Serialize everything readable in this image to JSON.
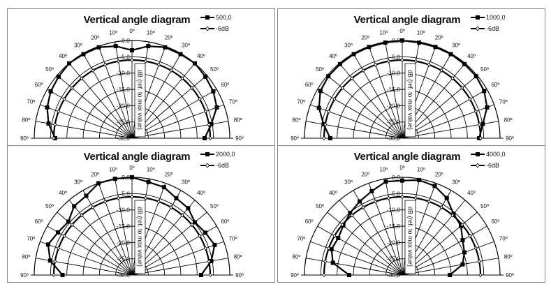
{
  "chart_data": [
    {
      "type": "polar-line",
      "title": "Vertical angle diagram",
      "axis_label": "dB (ref. to max value)",
      "radial_ticks": [
        "0,0",
        "-5,0",
        "-10,0",
        "-15,0",
        "-20,0",
        "-25,0",
        "-30,0"
      ],
      "rlim": [
        -30,
        0
      ],
      "angle_tick_labels": [
        "90º",
        "80º",
        "70º",
        "60º",
        "50º",
        "40º",
        "30º",
        "20º",
        "10º",
        "0º",
        "10º",
        "20º",
        "30º",
        "40º",
        "50º",
        "60º",
        "70º",
        "80º",
        "90º"
      ],
      "angles": [
        -90,
        -80,
        -70,
        -60,
        -50,
        -40,
        -30,
        -20,
        -10,
        0,
        10,
        20,
        30,
        40,
        50,
        60,
        70,
        80,
        90
      ],
      "legend_placement": "top-right",
      "series": [
        {
          "name": "500,0",
          "marker": "square",
          "values": [
            -6.4,
            -4,
            -2.3,
            -1.2,
            -0.6,
            0,
            -0.2,
            -0.3,
            -1.3,
            -3,
            -1.3,
            -0.3,
            -0.2,
            0,
            -0.6,
            -1.2,
            -2.3,
            -5.3,
            -7.7
          ]
        },
        {
          "name": "-6dB",
          "marker": "diamond",
          "values": [
            -6,
            -6,
            -6,
            -6,
            -6,
            -6,
            -6,
            -6,
            -6,
            -6,
            -6,
            -6,
            -6,
            -6,
            -6,
            -6,
            -6,
            -6,
            -6
          ]
        }
      ]
    },
    {
      "type": "polar-line",
      "title": "Vertical angle diagram",
      "axis_label": "dB (ref. to max value)",
      "radial_ticks": [
        "0,0",
        "-5,0",
        "-10,0",
        "-15,0",
        "-20,0",
        "-25,0",
        "-30,0"
      ],
      "rlim": [
        -30,
        0
      ],
      "angle_tick_labels": [
        "90º",
        "80º",
        "70º",
        "60º",
        "50º",
        "40º",
        "30º",
        "20º",
        "10º",
        "0º",
        "10º",
        "20º",
        "30º",
        "40º",
        "50º",
        "60º",
        "70º",
        "80º",
        "90º"
      ],
      "angles": [
        -90,
        -80,
        -70,
        -60,
        -50,
        -40,
        -30,
        -20,
        -10,
        0,
        10,
        20,
        30,
        40,
        50,
        60,
        70,
        80,
        90
      ],
      "legend_placement": "top-right",
      "series": [
        {
          "name": "1000,0",
          "marker": "square",
          "values": [
            -7.9,
            -5.5,
            -2.8,
            -1,
            -0.4,
            -0.3,
            -0.2,
            -0.2,
            -0.2,
            0,
            -0.2,
            -0.2,
            -0.2,
            -0.3,
            -0.4,
            -1,
            -2.3,
            -4.9,
            -6.4
          ]
        },
        {
          "name": "-6dB",
          "marker": "diamond",
          "values": [
            -6,
            -6,
            -6,
            -6,
            -6,
            -6,
            -6,
            -6,
            -6,
            -6,
            -6,
            -6,
            -6,
            -6,
            -6,
            -6,
            -6,
            -6,
            -6
          ]
        }
      ]
    },
    {
      "type": "polar-line",
      "title": "Vertical angle diagram",
      "axis_label": "dB (ref. to max value)",
      "radial_ticks": [
        "0,0",
        "-5,0",
        "-10,0",
        "-15,0",
        "-20,0",
        "-25,0",
        "-30,0"
      ],
      "rlim": [
        -30,
        0
      ],
      "angle_tick_labels": [
        "90º",
        "80º",
        "70º",
        "60º",
        "50º",
        "40º",
        "30º",
        "20º",
        "10º",
        "0º",
        "10º",
        "20º",
        "30º",
        "40º",
        "50º",
        "60º",
        "70º",
        "80º",
        "90º"
      ],
      "angles": [
        -90,
        -80,
        -70,
        -60,
        -50,
        -40,
        -30,
        -20,
        -10,
        0,
        10,
        20,
        30,
        40,
        50,
        60,
        70,
        80,
        90
      ],
      "legend_placement": "top-right",
      "series": [
        {
          "name": "2000,0",
          "marker": "square",
          "values": [
            -8.7,
            -4.5,
            -2.6,
            -3.8,
            -4.5,
            -2.4,
            -1.9,
            0,
            0,
            0,
            -1,
            -1.3,
            -2.8,
            -3.2,
            -4.8,
            -4,
            -3,
            -5.3,
            -8.8
          ]
        },
        {
          "name": "-6dB",
          "marker": "diamond",
          "values": [
            -6,
            -6,
            -6,
            -6,
            -6,
            -6,
            -6,
            -6,
            -6,
            -6,
            -6,
            -6,
            -6,
            -6,
            -6,
            -6,
            -6,
            -6,
            -6
          ]
        }
      ]
    },
    {
      "type": "polar-line",
      "title": "Vertical angle diagram",
      "axis_label": "dB (ref. to max value)",
      "radial_ticks": [
        "0,0",
        "-5,0",
        "-10,0",
        "-15,0",
        "-20,0",
        "-25,0",
        "-30,0"
      ],
      "rlim": [
        -30,
        0
      ],
      "angle_tick_labels": [
        "90º",
        "80º",
        "70º",
        "60º",
        "50º",
        "40º",
        "30º",
        "20º",
        "10º",
        "0º",
        "10º",
        "20º",
        "30º",
        "40º",
        "50º",
        "60º",
        "70º",
        "80º",
        "90º"
      ],
      "angles": [
        -90,
        -80,
        -70,
        -60,
        -50,
        -40,
        -30,
        -20,
        -10,
        0,
        10,
        20,
        30,
        40,
        50,
        60,
        70,
        80,
        90
      ],
      "legend_placement": "top-right",
      "series": [
        {
          "name": "4000,0",
          "marker": "square",
          "values": [
            -13.7,
            -8.4,
            -6.9,
            -7.3,
            -6.4,
            -5.1,
            -3.9,
            -2.6,
            -0.9,
            -1,
            -0.4,
            -0.9,
            -2.7,
            -5.5,
            -6.5,
            -8.6,
            -9.7,
            -11.2,
            -15.4
          ]
        },
        {
          "name": "-6dB",
          "marker": "diamond",
          "values": [
            -6,
            -6,
            -6,
            -6,
            -6,
            -6,
            -6,
            -6,
            -6,
            -6,
            -6,
            -6,
            -6,
            -6,
            -6,
            -6,
            -6,
            -6,
            -6
          ]
        }
      ]
    }
  ]
}
